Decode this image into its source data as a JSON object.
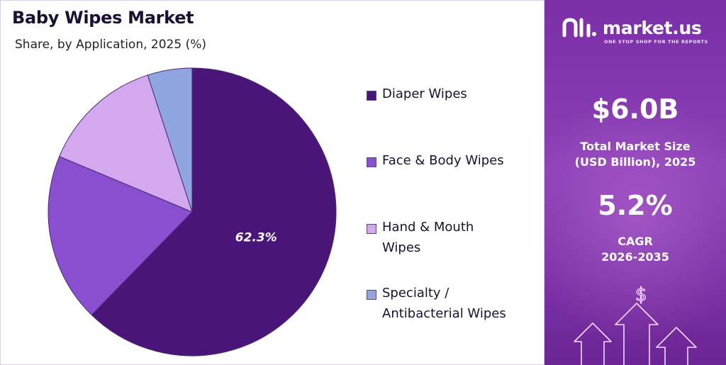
{
  "chart_data": {
    "type": "pie",
    "title": "Baby Wipes Market",
    "subtitle": "Share, by Application, 2025 (%)",
    "slices": [
      {
        "name": "Diaper Wipes",
        "value": 62.3,
        "label": "62.3%",
        "color": "#4a1578"
      },
      {
        "name": "Face & Body Wipes",
        "value": 19.0,
        "label": "",
        "color": "#8a4fd0"
      },
      {
        "name": "Hand & Mouth Wipes",
        "value": 13.7,
        "label": "",
        "color": "#d4a8ee"
      },
      {
        "name": "Specialty / Antibacterial Wipes",
        "value": 5.0,
        "label": "",
        "color": "#8fa6e0"
      }
    ],
    "legend_placement": "right"
  },
  "legend": [
    {
      "line1": "Diaper Wipes",
      "line2": ""
    },
    {
      "line1": "Face & Body Wipes",
      "line2": ""
    },
    {
      "line1": "Hand & Mouth",
      "line2": "Wipes"
    },
    {
      "line1": "Specialty /",
      "line2": "Antibacterial Wipes"
    }
  ],
  "brand": {
    "name": "market.us",
    "tagline": "ONE STOP SHOP FOR THE REPORTS",
    "icon": "market-us-logo-icon"
  },
  "stats": {
    "market_size_value": "$6.0B",
    "market_size_label_1": "Total Market Size",
    "market_size_label_2": "(USD Billion), 2025",
    "cagr_value": "5.2%",
    "cagr_label_1": "CAGR",
    "cagr_label_2": "2026-2035"
  },
  "decor": {
    "dollar_symbol": "$",
    "growth_icon": "growth-arrows-icon"
  }
}
